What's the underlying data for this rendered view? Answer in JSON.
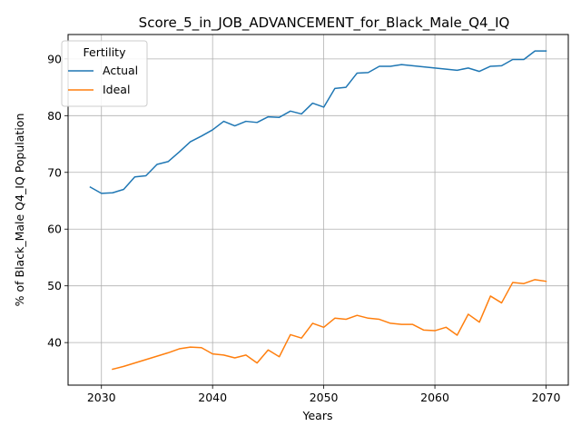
{
  "chart_data": {
    "type": "line",
    "title": "Score_5_in_JOB_ADVANCEMENT_for_Black_Male_Q4_IQ",
    "xlabel": "Years",
    "ylabel": "% of Black_Male Q4_IQ Population",
    "xlim": [
      2027,
      2072
    ],
    "ylim": [
      32.5,
      94.3
    ],
    "xticks": [
      2030,
      2040,
      2050,
      2060,
      2070
    ],
    "yticks": [
      40,
      50,
      60,
      70,
      80,
      90
    ],
    "grid": true,
    "legend": {
      "title": "Fertility",
      "placement": "top-left"
    },
    "series": [
      {
        "name": "Actual",
        "color": "#1f77b4",
        "x": [
          2029,
          2030,
          2031,
          2032,
          2033,
          2034,
          2035,
          2036,
          2037,
          2038,
          2039,
          2040,
          2041,
          2042,
          2043,
          2044,
          2045,
          2046,
          2047,
          2048,
          2049,
          2050,
          2051,
          2052,
          2053,
          2054,
          2055,
          2056,
          2057,
          2058,
          2059,
          2060,
          2061,
          2062,
          2063,
          2064,
          2065,
          2066,
          2067,
          2068,
          2069,
          2070
        ],
        "y": [
          67.4,
          66.3,
          66.4,
          67.0,
          69.2,
          69.4,
          71.4,
          71.9,
          73.6,
          75.4,
          76.4,
          77.5,
          79.0,
          78.2,
          79.0,
          78.8,
          79.8,
          79.7,
          80.8,
          80.3,
          82.2,
          81.5,
          84.8,
          85.0,
          87.5,
          87.6,
          88.7,
          88.7,
          89.0,
          88.8,
          88.6,
          88.4,
          88.2,
          88.0,
          88.4,
          87.8,
          88.7,
          88.8,
          89.9,
          89.9,
          91.4,
          91.4
        ]
      },
      {
        "name": "Ideal",
        "color": "#ff7f0e",
        "x": [
          2031,
          2032,
          2033,
          2034,
          2035,
          2036,
          2037,
          2038,
          2039,
          2040,
          2041,
          2042,
          2043,
          2044,
          2045,
          2046,
          2047,
          2048,
          2049,
          2050,
          2051,
          2052,
          2053,
          2054,
          2055,
          2056,
          2057,
          2058,
          2059,
          2060,
          2061,
          2062,
          2063,
          2064,
          2065,
          2066,
          2067,
          2068,
          2069,
          2070
        ],
        "y": [
          35.3,
          35.8,
          36.4,
          37.0,
          37.6,
          38.2,
          38.9,
          39.2,
          39.1,
          38.0,
          37.8,
          37.3,
          37.8,
          36.4,
          38.7,
          37.5,
          41.4,
          40.8,
          43.4,
          42.7,
          44.3,
          44.1,
          44.8,
          44.3,
          44.1,
          43.4,
          43.2,
          43.2,
          42.2,
          42.1,
          42.7,
          41.3,
          45.0,
          43.6,
          48.2,
          47.0,
          50.6,
          50.4,
          51.1,
          50.8
        ]
      }
    ]
  }
}
